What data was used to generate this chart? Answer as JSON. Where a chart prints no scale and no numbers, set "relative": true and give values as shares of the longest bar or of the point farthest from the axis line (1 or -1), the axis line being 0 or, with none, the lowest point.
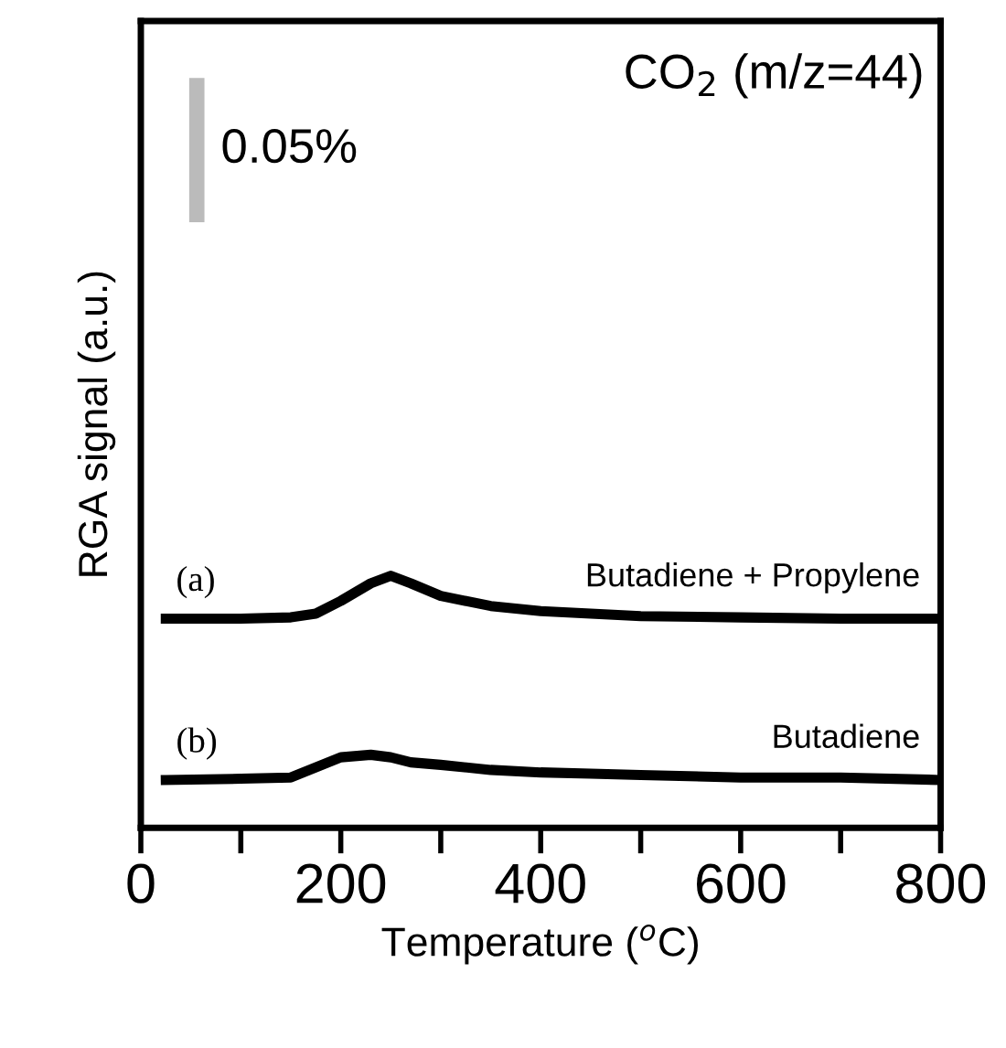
{
  "chart_data": {
    "type": "line",
    "title": "CO$_{2}$ (m/z=44)",
    "xlabel": "Temperature ($^{o}$C)",
    "ylabel": "RGA signal (a.u.)",
    "relative": true,
    "x": [
      25,
      100,
      150,
      175,
      200,
      230,
      250,
      270,
      300,
      350,
      400,
      450,
      500,
      600,
      700,
      800
    ],
    "xlim": [
      0,
      800
    ],
    "xticks": [
      0,
      {
        "value": 100,
        "label": null
      },
      200,
      {
        "value": 300,
        "label": null
      },
      400,
      {
        "value": 500,
        "label": null
      },
      600,
      {
        "value": 700,
        "label": null
      },
      800
    ],
    "series": [
      {
        "name": "Butadiene + Propylene",
        "color": "#000000",
        "values": [
          0.83,
          0.83,
          0.835,
          0.85,
          0.9,
          0.97,
          1.0,
          0.97,
          0.92,
          0.88,
          0.86,
          0.85,
          0.84,
          0.835,
          0.83,
          0.83
        ]
      },
      {
        "name": "Butadiene",
        "color": "#000000",
        "values": [
          0.19,
          0.195,
          0.2,
          0.24,
          0.28,
          0.29,
          0.28,
          0.26,
          0.25,
          0.23,
          0.22,
          0.215,
          0.21,
          0.2,
          0.2,
          0.19
        ]
      }
    ],
    "annotations": [
      "(a)",
      "(b)",
      "0.05%"
    ],
    "grid": false,
    "legend": false,
    "marker": "none",
    "line_style": "solid"
  }
}
